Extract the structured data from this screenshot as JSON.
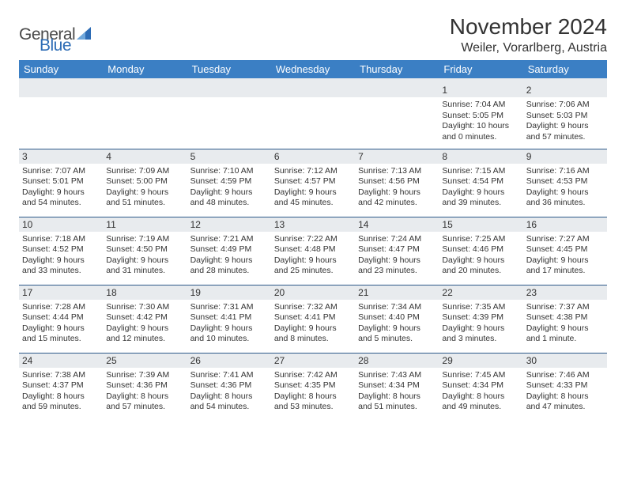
{
  "brand": {
    "word1": "General",
    "word2": "Blue"
  },
  "title": "November 2024",
  "location": "Weiler, Vorarlberg, Austria",
  "colors": {
    "header_bg": "#3b7fc4",
    "header_text": "#ffffff",
    "daynum_bg": "#e8ebee",
    "rule": "#2e5a8a",
    "body_text": "#333333",
    "brand_blue": "#2d6cb5"
  },
  "typography": {
    "title_fontsize": 28,
    "location_fontsize": 16,
    "header_fontsize": 13,
    "daynum_fontsize": 12,
    "body_fontsize": 10.5
  },
  "day_headers": [
    "Sunday",
    "Monday",
    "Tuesday",
    "Wednesday",
    "Thursday",
    "Friday",
    "Saturday"
  ],
  "weeks": [
    [
      null,
      null,
      null,
      null,
      null,
      {
        "n": "1",
        "sr": "7:04 AM",
        "ss": "5:05 PM",
        "dl": "10 hours and 0 minutes."
      },
      {
        "n": "2",
        "sr": "7:06 AM",
        "ss": "5:03 PM",
        "dl": "9 hours and 57 minutes."
      }
    ],
    [
      {
        "n": "3",
        "sr": "7:07 AM",
        "ss": "5:01 PM",
        "dl": "9 hours and 54 minutes."
      },
      {
        "n": "4",
        "sr": "7:09 AM",
        "ss": "5:00 PM",
        "dl": "9 hours and 51 minutes."
      },
      {
        "n": "5",
        "sr": "7:10 AM",
        "ss": "4:59 PM",
        "dl": "9 hours and 48 minutes."
      },
      {
        "n": "6",
        "sr": "7:12 AM",
        "ss": "4:57 PM",
        "dl": "9 hours and 45 minutes."
      },
      {
        "n": "7",
        "sr": "7:13 AM",
        "ss": "4:56 PM",
        "dl": "9 hours and 42 minutes."
      },
      {
        "n": "8",
        "sr": "7:15 AM",
        "ss": "4:54 PM",
        "dl": "9 hours and 39 minutes."
      },
      {
        "n": "9",
        "sr": "7:16 AM",
        "ss": "4:53 PM",
        "dl": "9 hours and 36 minutes."
      }
    ],
    [
      {
        "n": "10",
        "sr": "7:18 AM",
        "ss": "4:52 PM",
        "dl": "9 hours and 33 minutes."
      },
      {
        "n": "11",
        "sr": "7:19 AM",
        "ss": "4:50 PM",
        "dl": "9 hours and 31 minutes."
      },
      {
        "n": "12",
        "sr": "7:21 AM",
        "ss": "4:49 PM",
        "dl": "9 hours and 28 minutes."
      },
      {
        "n": "13",
        "sr": "7:22 AM",
        "ss": "4:48 PM",
        "dl": "9 hours and 25 minutes."
      },
      {
        "n": "14",
        "sr": "7:24 AM",
        "ss": "4:47 PM",
        "dl": "9 hours and 23 minutes."
      },
      {
        "n": "15",
        "sr": "7:25 AM",
        "ss": "4:46 PM",
        "dl": "9 hours and 20 minutes."
      },
      {
        "n": "16",
        "sr": "7:27 AM",
        "ss": "4:45 PM",
        "dl": "9 hours and 17 minutes."
      }
    ],
    [
      {
        "n": "17",
        "sr": "7:28 AM",
        "ss": "4:44 PM",
        "dl": "9 hours and 15 minutes."
      },
      {
        "n": "18",
        "sr": "7:30 AM",
        "ss": "4:42 PM",
        "dl": "9 hours and 12 minutes."
      },
      {
        "n": "19",
        "sr": "7:31 AM",
        "ss": "4:41 PM",
        "dl": "9 hours and 10 minutes."
      },
      {
        "n": "20",
        "sr": "7:32 AM",
        "ss": "4:41 PM",
        "dl": "9 hours and 8 minutes."
      },
      {
        "n": "21",
        "sr": "7:34 AM",
        "ss": "4:40 PM",
        "dl": "9 hours and 5 minutes."
      },
      {
        "n": "22",
        "sr": "7:35 AM",
        "ss": "4:39 PM",
        "dl": "9 hours and 3 minutes."
      },
      {
        "n": "23",
        "sr": "7:37 AM",
        "ss": "4:38 PM",
        "dl": "9 hours and 1 minute."
      }
    ],
    [
      {
        "n": "24",
        "sr": "7:38 AM",
        "ss": "4:37 PM",
        "dl": "8 hours and 59 minutes."
      },
      {
        "n": "25",
        "sr": "7:39 AM",
        "ss": "4:36 PM",
        "dl": "8 hours and 57 minutes."
      },
      {
        "n": "26",
        "sr": "7:41 AM",
        "ss": "4:36 PM",
        "dl": "8 hours and 54 minutes."
      },
      {
        "n": "27",
        "sr": "7:42 AM",
        "ss": "4:35 PM",
        "dl": "8 hours and 53 minutes."
      },
      {
        "n": "28",
        "sr": "7:43 AM",
        "ss": "4:34 PM",
        "dl": "8 hours and 51 minutes."
      },
      {
        "n": "29",
        "sr": "7:45 AM",
        "ss": "4:34 PM",
        "dl": "8 hours and 49 minutes."
      },
      {
        "n": "30",
        "sr": "7:46 AM",
        "ss": "4:33 PM",
        "dl": "8 hours and 47 minutes."
      }
    ]
  ],
  "labels": {
    "sunrise": "Sunrise:",
    "sunset": "Sunset:",
    "daylight": "Daylight:"
  }
}
